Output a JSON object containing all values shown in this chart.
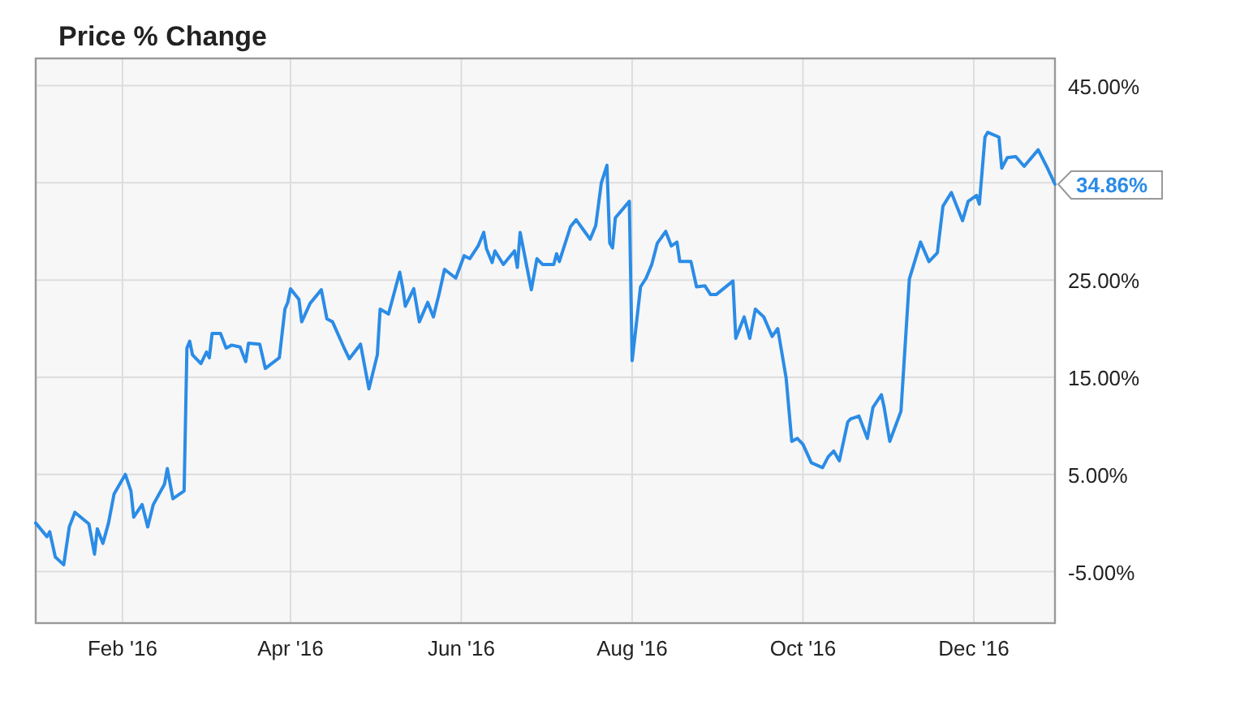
{
  "chart_data": {
    "type": "line",
    "title": "Price % Change",
    "x": [
      "2016-01-01",
      "2016-01-05",
      "2016-01-06",
      "2016-01-08",
      "2016-01-11",
      "2016-01-13",
      "2016-01-15",
      "2016-01-20",
      "2016-01-22",
      "2016-01-23",
      "2016-01-25",
      "2016-01-27",
      "2016-01-29",
      "2016-02-02",
      "2016-02-04",
      "2016-02-05",
      "2016-02-08",
      "2016-02-10",
      "2016-02-12",
      "2016-02-16",
      "2016-02-17",
      "2016-02-19",
      "2016-02-23",
      "2016-02-24",
      "2016-02-25",
      "2016-02-26",
      "2016-02-29",
      "2016-03-02",
      "2016-03-03",
      "2016-03-04",
      "2016-03-07",
      "2016-03-09",
      "2016-03-11",
      "2016-03-14",
      "2016-03-16",
      "2016-03-17",
      "2016-03-21",
      "2016-03-23",
      "2016-03-28",
      "2016-03-30",
      "2016-03-31",
      "2016-04-01",
      "2016-04-04",
      "2016-04-05",
      "2016-04-08",
      "2016-04-12",
      "2016-04-14",
      "2016-04-16",
      "2016-04-20",
      "2016-04-22",
      "2016-04-26",
      "2016-04-29",
      "2016-05-02",
      "2016-05-03",
      "2016-05-06",
      "2016-05-10",
      "2016-05-11",
      "2016-05-12",
      "2016-05-15",
      "2016-05-17",
      "2016-05-20",
      "2016-05-22",
      "2016-05-24",
      "2016-05-26",
      "2016-05-30",
      "2016-06-02",
      "2016-06-04",
      "2016-06-07",
      "2016-06-09",
      "2016-06-10",
      "2016-06-12",
      "2016-06-13",
      "2016-06-16",
      "2016-06-20",
      "2016-06-21",
      "2016-06-22",
      "2016-06-26",
      "2016-06-28",
      "2016-06-30",
      "2016-07-04",
      "2016-07-05",
      "2016-07-06",
      "2016-07-10",
      "2016-07-12",
      "2016-07-15",
      "2016-07-17",
      "2016-07-19",
      "2016-07-21",
      "2016-07-23",
      "2016-07-24",
      "2016-07-25",
      "2016-07-26",
      "2016-07-31",
      "2016-08-01",
      "2016-08-02",
      "2016-08-04",
      "2016-08-06",
      "2016-08-08",
      "2016-08-10",
      "2016-08-13",
      "2016-08-15",
      "2016-08-17",
      "2016-08-18",
      "2016-08-22",
      "2016-08-24",
      "2016-08-27",
      "2016-08-29",
      "2016-08-31",
      "2016-09-06",
      "2016-09-07",
      "2016-09-10",
      "2016-09-12",
      "2016-09-14",
      "2016-09-17",
      "2016-09-20",
      "2016-09-22",
      "2016-09-25",
      "2016-09-27",
      "2016-09-29",
      "2016-10-01",
      "2016-10-04",
      "2016-10-08",
      "2016-10-10",
      "2016-10-12",
      "2016-10-14",
      "2016-10-17",
      "2016-10-18",
      "2016-10-21",
      "2016-10-24",
      "2016-10-26",
      "2016-10-29",
      "2016-10-30",
      "2016-11-01",
      "2016-11-05",
      "2016-11-08",
      "2016-11-12",
      "2016-11-15",
      "2016-11-18",
      "2016-11-20",
      "2016-11-23",
      "2016-11-27",
      "2016-11-29",
      "2016-12-02",
      "2016-12-03",
      "2016-12-05",
      "2016-12-06",
      "2016-12-10",
      "2016-12-11",
      "2016-12-13",
      "2016-12-16",
      "2016-12-19",
      "2016-12-24",
      "2016-12-27",
      "2016-12-30"
    ],
    "series": [
      {
        "color": "#2b8ce6",
        "values": [
          0,
          -1.4,
          -0.9,
          -3.5,
          -4.3,
          -0.4,
          1.1,
          -0.1,
          -3.2,
          -0.6,
          -2.1,
          0,
          3.0,
          5.0,
          3.3,
          0.6,
          1.9,
          -0.4,
          1.9,
          4.0,
          5.6,
          2.5,
          3.3,
          18.0,
          18.7,
          17.3,
          16.4,
          17.6,
          17.0,
          19.5,
          19.5,
          18.0,
          18.3,
          18.1,
          16.6,
          18.5,
          18.4,
          15.9,
          17.0,
          22.0,
          22.7,
          24.1,
          23.0,
          20.7,
          22.6,
          24.0,
          21.0,
          20.7,
          18.1,
          16.9,
          18.4,
          13.8,
          17.3,
          22.0,
          21.5,
          25.8,
          24.3,
          22.3,
          24.1,
          20.7,
          22.7,
          21.2,
          23.5,
          26.1,
          25.2,
          27.5,
          27.2,
          28.5,
          29.9,
          28.2,
          26.8,
          28.0,
          26.6,
          28.0,
          26.3,
          29.9,
          24.0,
          27.2,
          26.6,
          26.6,
          27.7,
          26.9,
          30.5,
          31.2,
          30.0,
          29.2,
          30.6,
          35.0,
          36.8,
          28.8,
          28.3,
          31.4,
          33.1,
          16.7,
          19.2,
          24.3,
          25.2,
          26.6,
          28.8,
          30.0,
          28.5,
          28.9,
          26.9,
          26.9,
          24.3,
          24.4,
          23.5,
          23.5,
          24.9,
          19.0,
          21.2,
          19.0,
          22.0,
          21.2,
          19.2,
          20.0,
          14.9,
          8.4,
          8.7,
          8.1,
          6.2,
          5.7,
          6.8,
          7.4,
          6.4,
          10.4,
          10.7,
          11.0,
          8.7,
          11.9,
          13.2,
          11.9,
          8.4,
          11.5,
          25.1,
          28.9,
          26.9,
          27.8,
          32.6,
          34.0,
          31.1,
          33.1,
          33.7,
          32.8,
          39.7,
          40.2,
          39.7,
          36.5,
          37.6,
          37.7,
          36.7,
          38.4,
          36.7,
          34.86
        ]
      }
    ],
    "xlim": [
      "2016-01-01",
      "2016-12-30"
    ],
    "xticks": [
      {
        "value": "2016-02-01",
        "label": "Feb '16"
      },
      {
        "value": "2016-04-01",
        "label": "Apr '16"
      },
      {
        "value": "2016-06-01",
        "label": "Jun '16"
      },
      {
        "value": "2016-08-01",
        "label": "Aug '16"
      },
      {
        "value": "2016-10-01",
        "label": "Oct '16"
      },
      {
        "value": "2016-12-01",
        "label": "Dec '16"
      }
    ],
    "ylim": [
      -10.3,
      47.8
    ],
    "yticks": [
      {
        "value": -5,
        "label": "-5.00%"
      },
      {
        "value": 5,
        "label": "5.00%"
      },
      {
        "value": 15,
        "label": "15.00%"
      },
      {
        "value": 25,
        "label": "25.00%"
      },
      {
        "value": 35,
        "label": null
      },
      {
        "value": 45,
        "label": "45.00%"
      }
    ],
    "grid": true,
    "annotations": [
      {
        "text": "34.86%",
        "x": "2016-12-30",
        "y": 34.86
      }
    ]
  }
}
